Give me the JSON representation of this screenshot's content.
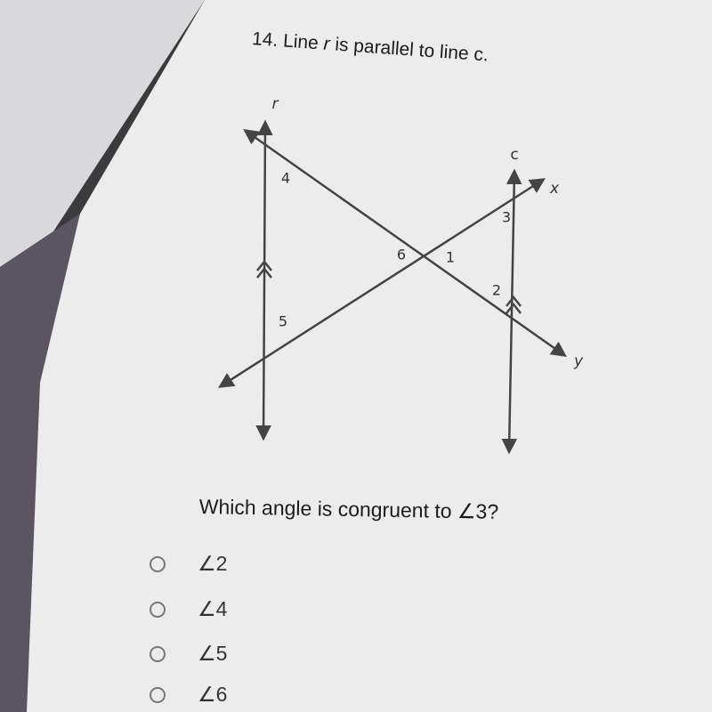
{
  "question": {
    "number": "14.",
    "prompt_parts": [
      "Line ",
      "r",
      " is parallel to line c."
    ]
  },
  "diagram": {
    "lines": {
      "r": "r",
      "c": "c",
      "x": "x",
      "y": "y"
    },
    "angles": [
      "1",
      "2",
      "3",
      "4",
      "5",
      "6"
    ]
  },
  "ask": "Which angle is congruent to ∠3?",
  "options": [
    "∠2",
    "∠4",
    "∠5",
    "∠6"
  ]
}
